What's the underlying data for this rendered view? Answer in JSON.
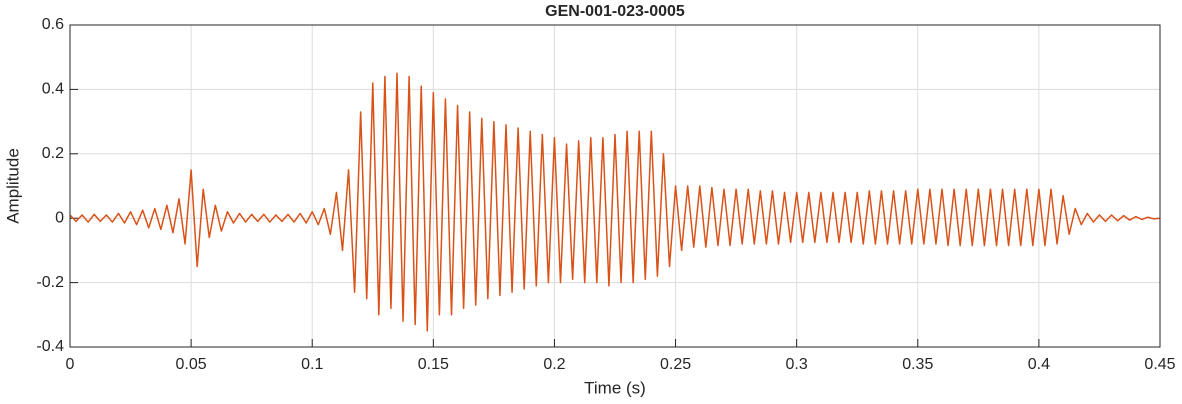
{
  "chart_data": {
    "type": "line",
    "title": "GEN-001-023-0005",
    "xlabel": "Time (s)",
    "ylabel": "Amplitude",
    "color": "#d95319",
    "grid": true,
    "xlim": [
      0,
      0.45
    ],
    "ylim": [
      -0.4,
      0.6
    ],
    "xticks": [
      0,
      0.05,
      0.1,
      0.15,
      0.2,
      0.25,
      0.3,
      0.35,
      0.4,
      0.45
    ],
    "yticks": [
      -0.4,
      -0.2,
      0,
      0.2,
      0.4,
      0.6
    ],
    "x": [
      0,
      0.0025,
      0.005,
      0.0075,
      0.01,
      0.0125,
      0.015,
      0.0175,
      0.02,
      0.0225,
      0.025,
      0.0275,
      0.03,
      0.0325,
      0.035,
      0.0375,
      0.04,
      0.0425,
      0.045,
      0.0475,
      0.05,
      0.0525,
      0.055,
      0.0575,
      0.06,
      0.0625,
      0.065,
      0.0675,
      0.07,
      0.0725,
      0.075,
      0.0775,
      0.08,
      0.0825,
      0.085,
      0.0875,
      0.09,
      0.0925,
      0.095,
      0.0975,
      0.1,
      0.1025,
      0.105,
      0.1075,
      0.11,
      0.1125,
      0.115,
      0.1175,
      0.12,
      0.1225,
      0.125,
      0.1275,
      0.13,
      0.1325,
      0.135,
      0.1375,
      0.14,
      0.1425,
      0.145,
      0.1475,
      0.15,
      0.1525,
      0.155,
      0.1575,
      0.16,
      0.1625,
      0.165,
      0.1675,
      0.17,
      0.1725,
      0.175,
      0.1775,
      0.18,
      0.1825,
      0.185,
      0.1875,
      0.19,
      0.1925,
      0.195,
      0.1975,
      0.2,
      0.2025,
      0.205,
      0.2075,
      0.21,
      0.2125,
      0.215,
      0.2175,
      0.22,
      0.2225,
      0.225,
      0.2275,
      0.23,
      0.2325,
      0.235,
      0.2375,
      0.24,
      0.2425,
      0.245,
      0.2475,
      0.25,
      0.2525,
      0.255,
      0.2575,
      0.26,
      0.2625,
      0.265,
      0.2675,
      0.27,
      0.2725,
      0.275,
      0.2775,
      0.28,
      0.2825,
      0.285,
      0.2875,
      0.29,
      0.2925,
      0.295,
      0.2975,
      0.3,
      0.3025,
      0.305,
      0.3075,
      0.31,
      0.3125,
      0.315,
      0.3175,
      0.32,
      0.3225,
      0.325,
      0.3275,
      0.33,
      0.3325,
      0.335,
      0.3375,
      0.34,
      0.3425,
      0.345,
      0.3475,
      0.35,
      0.3525,
      0.355,
      0.3575,
      0.36,
      0.3625,
      0.365,
      0.3675,
      0.37,
      0.3725,
      0.375,
      0.3775,
      0.38,
      0.3825,
      0.385,
      0.3875,
      0.39,
      0.3925,
      0.395,
      0.3975,
      0.4,
      0.4025,
      0.405,
      0.4075,
      0.41,
      0.4125,
      0.415,
      0.4175,
      0.42,
      0.4225,
      0.425,
      0.4275,
      0.43,
      0.4325,
      0.435,
      0.4375,
      0.44,
      0.4425,
      0.445,
      0.4475,
      0.45
    ],
    "values": [
      0.01,
      -0.01,
      0.01,
      -0.012,
      0.012,
      -0.01,
      0.01,
      -0.012,
      0.015,
      -0.015,
      0.02,
      -0.02,
      0.025,
      -0.03,
      0.03,
      -0.035,
      0.04,
      -0.045,
      0.06,
      -0.08,
      0.15,
      -0.15,
      0.09,
      -0.06,
      0.04,
      -0.04,
      0.02,
      -0.015,
      0.015,
      -0.012,
      0.012,
      -0.01,
      0.012,
      -0.012,
      0.01,
      -0.01,
      0.012,
      -0.012,
      0.015,
      -0.015,
      0.02,
      -0.02,
      0.03,
      -0.05,
      0.08,
      -0.1,
      0.15,
      -0.23,
      0.33,
      -0.25,
      0.42,
      -0.3,
      0.44,
      -0.28,
      0.45,
      -0.32,
      0.44,
      -0.33,
      0.41,
      -0.35,
      0.39,
      -0.3,
      0.37,
      -0.3,
      0.35,
      -0.28,
      0.33,
      -0.27,
      0.31,
      -0.25,
      0.3,
      -0.24,
      0.29,
      -0.23,
      0.28,
      -0.22,
      0.27,
      -0.21,
      0.26,
      -0.2,
      0.25,
      -0.2,
      0.23,
      -0.19,
      0.24,
      -0.2,
      0.25,
      -0.2,
      0.25,
      -0.21,
      0.26,
      -0.2,
      0.27,
      -0.2,
      0.27,
      -0.19,
      0.27,
      -0.18,
      0.2,
      -0.15,
      0.1,
      -0.1,
      0.1,
      -0.09,
      0.1,
      -0.09,
      0.095,
      -0.085,
      0.09,
      -0.085,
      0.09,
      -0.08,
      0.09,
      -0.08,
      0.085,
      -0.08,
      0.085,
      -0.08,
      0.08,
      -0.075,
      0.08,
      -0.075,
      0.08,
      -0.075,
      0.08,
      -0.075,
      0.08,
      -0.075,
      0.08,
      -0.075,
      0.08,
      -0.08,
      0.085,
      -0.08,
      0.085,
      -0.08,
      0.085,
      -0.08,
      0.085,
      -0.08,
      0.09,
      -0.08,
      0.09,
      -0.08,
      0.09,
      -0.085,
      0.09,
      -0.085,
      0.09,
      -0.085,
      0.09,
      -0.085,
      0.09,
      -0.085,
      0.09,
      -0.085,
      0.09,
      -0.085,
      0.09,
      -0.085,
      0.09,
      -0.085,
      0.09,
      -0.08,
      0.07,
      -0.05,
      0.03,
      -0.02,
      0.015,
      -0.012,
      0.01,
      -0.01,
      0.01,
      -0.008,
      0.008,
      -0.006,
      0.005,
      -0.004,
      0.003,
      -0.002,
      0
    ]
  }
}
